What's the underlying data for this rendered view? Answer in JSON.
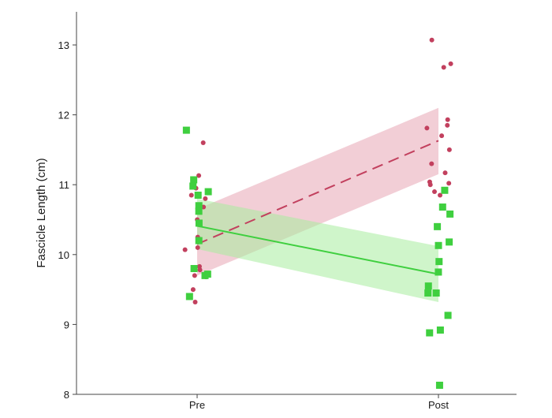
{
  "chart_data": {
    "type": "scatter",
    "title": "",
    "xlabel": "",
    "ylabel": "Fascicle Length (cm)",
    "categories": [
      "Pre",
      "Post"
    ],
    "ylim": [
      8,
      13.5
    ],
    "yticks": [
      8,
      9,
      10,
      11,
      12,
      13
    ],
    "grid": false,
    "legend": "none",
    "series": [
      {
        "color": "#c2405e",
        "band_color": "#e8a6b4",
        "marker": "circle",
        "line_style": "dashed",
        "fit": {
          "Pre": 10.15,
          "Post": 11.63
        },
        "band": {
          "Pre": [
            9.7,
            10.65
          ],
          "Post": [
            11.15,
            12.1
          ]
        },
        "points": [
          {
            "x": "Pre",
            "y": 11.6
          },
          {
            "x": "Pre",
            "y": 11.13
          },
          {
            "x": "Pre",
            "y": 10.95
          },
          {
            "x": "Pre",
            "y": 10.85
          },
          {
            "x": "Pre",
            "y": 10.8
          },
          {
            "x": "Pre",
            "y": 10.68
          },
          {
            "x": "Pre",
            "y": 10.5
          },
          {
            "x": "Pre",
            "y": 10.25
          },
          {
            "x": "Pre",
            "y": 10.1
          },
          {
            "x": "Pre",
            "y": 10.07
          },
          {
            "x": "Pre",
            "y": 9.83
          },
          {
            "x": "Pre",
            "y": 9.78
          },
          {
            "x": "Pre",
            "y": 9.7
          },
          {
            "x": "Pre",
            "y": 9.68
          },
          {
            "x": "Pre",
            "y": 9.5
          },
          {
            "x": "Pre",
            "y": 9.32
          },
          {
            "x": "Post",
            "y": 13.07
          },
          {
            "x": "Post",
            "y": 12.73
          },
          {
            "x": "Post",
            "y": 12.68
          },
          {
            "x": "Post",
            "y": 11.93
          },
          {
            "x": "Post",
            "y": 11.85
          },
          {
            "x": "Post",
            "y": 11.81
          },
          {
            "x": "Post",
            "y": 11.7
          },
          {
            "x": "Post",
            "y": 11.5
          },
          {
            "x": "Post",
            "y": 11.3
          },
          {
            "x": "Post",
            "y": 11.17
          },
          {
            "x": "Post",
            "y": 11.04
          },
          {
            "x": "Post",
            "y": 11.02
          },
          {
            "x": "Post",
            "y": 11.0
          },
          {
            "x": "Post",
            "y": 10.9
          },
          {
            "x": "Post",
            "y": 10.85
          }
        ]
      },
      {
        "color": "#3fcf3f",
        "band_color": "#a8ec9e",
        "marker": "square",
        "line_style": "solid",
        "fit": {
          "Pre": 10.41,
          "Post": 9.72
        },
        "band": {
          "Pre": [
            10.08,
            10.8
          ],
          "Post": [
            9.32,
            10.12
          ]
        },
        "points": [
          {
            "x": "Pre",
            "y": 11.78
          },
          {
            "x": "Pre",
            "y": 11.07
          },
          {
            "x": "Pre",
            "y": 10.98
          },
          {
            "x": "Pre",
            "y": 10.9
          },
          {
            "x": "Pre",
            "y": 10.85
          },
          {
            "x": "Pre",
            "y": 10.7
          },
          {
            "x": "Pre",
            "y": 10.62
          },
          {
            "x": "Pre",
            "y": 10.45
          },
          {
            "x": "Pre",
            "y": 10.2
          },
          {
            "x": "Pre",
            "y": 9.8
          },
          {
            "x": "Pre",
            "y": 9.72
          },
          {
            "x": "Pre",
            "y": 9.7
          },
          {
            "x": "Pre",
            "y": 9.4
          },
          {
            "x": "Post",
            "y": 10.92
          },
          {
            "x": "Post",
            "y": 10.68
          },
          {
            "x": "Post",
            "y": 10.58
          },
          {
            "x": "Post",
            "y": 10.4
          },
          {
            "x": "Post",
            "y": 10.18
          },
          {
            "x": "Post",
            "y": 10.13
          },
          {
            "x": "Post",
            "y": 9.9
          },
          {
            "x": "Post",
            "y": 9.75
          },
          {
            "x": "Post",
            "y": 9.55
          },
          {
            "x": "Post",
            "y": 9.45
          },
          {
            "x": "Post",
            "y": 9.45
          },
          {
            "x": "Post",
            "y": 9.13
          },
          {
            "x": "Post",
            "y": 8.92
          },
          {
            "x": "Post",
            "y": 8.88
          },
          {
            "x": "Post",
            "y": 8.13
          }
        ]
      }
    ]
  }
}
